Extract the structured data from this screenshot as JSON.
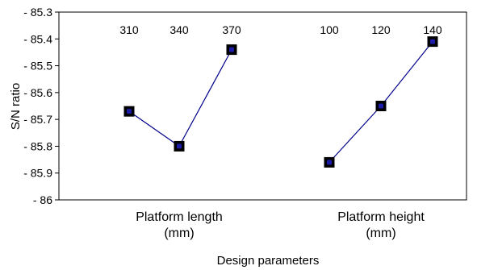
{
  "chart_data": {
    "type": "line",
    "title": "",
    "xlabel": "Design parameters",
    "ylabel": "S/N ratio",
    "ylim": [
      -86,
      -85.3
    ],
    "ytick_step": 0.1,
    "ytick_labels": [
      "- 85.3",
      "- 85.4",
      "- 85.5",
      "- 85.6",
      "- 85.7",
      "- 85.8",
      "- 85.9",
      "- 86"
    ],
    "grid": false,
    "groups": [
      {
        "label_line1": "Platform length",
        "label_line2": "(mm)",
        "levels": [
          "310",
          "340",
          "370"
        ],
        "values": [
          -85.67,
          -85.8,
          -85.44
        ]
      },
      {
        "label_line1": "Platform height",
        "label_line2": "(mm)",
        "levels": [
          "100",
          "120",
          "140"
        ],
        "values": [
          -85.86,
          -85.65,
          -85.41
        ]
      }
    ],
    "colors": {
      "line": "#00008b",
      "marker_outer": "#000000",
      "marker_inner": "#1c1ca8",
      "axis": "#000000"
    }
  }
}
